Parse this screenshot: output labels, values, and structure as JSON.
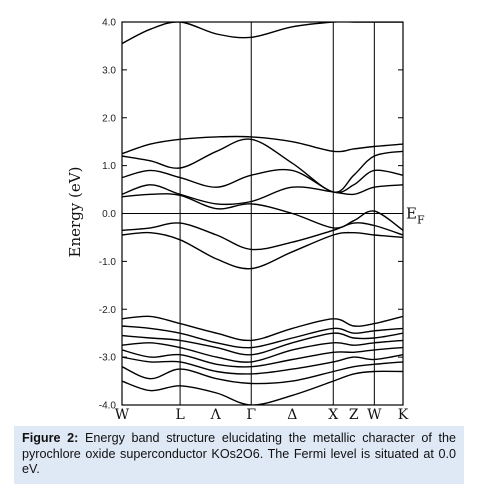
{
  "chart_data": {
    "type": "line",
    "ylabel": "Energy (eV)",
    "ylim": [
      -4.0,
      4.0
    ],
    "y_ticks": [
      "4.0",
      "3.0",
      "2.0",
      "1.0",
      "0.0",
      "-1.0",
      "-2.0",
      "-3.0",
      "-4.0"
    ],
    "k_points": [
      {
        "label": "W",
        "x": 0
      },
      {
        "label": "L",
        "x": 0.614
      },
      {
        "label": "Λ",
        "x": 0.99
      },
      {
        "label": "Γ",
        "x": 1.366
      },
      {
        "label": "Δ",
        "x": 1.8
      },
      {
        "label": "X",
        "x": 2.233
      },
      {
        "label": "Z",
        "x": 2.45
      },
      {
        "label": "W",
        "x": 2.667
      },
      {
        "label": "K",
        "x": 2.97
      }
    ],
    "vertical_lines_at": [
      0.614,
      1.366,
      2.233,
      2.667
    ],
    "fermi_level": {
      "label": "E",
      "subscript": "F",
      "value": 0.0
    },
    "series": [
      {
        "x": [
          0,
          0.3,
          0.614,
          1.0,
          1.366,
          1.8,
          2.233,
          2.45,
          2.667,
          2.97
        ],
        "y": [
          3.55,
          3.85,
          4.0,
          3.75,
          3.68,
          3.9,
          4.0,
          4.0,
          4.0,
          4.0
        ]
      },
      {
        "x": [
          0,
          0.3,
          0.614,
          1.0,
          1.366,
          1.8,
          2.233,
          2.45,
          2.667,
          2.97
        ],
        "y": [
          1.25,
          1.45,
          1.55,
          1.6,
          1.6,
          1.5,
          1.3,
          1.35,
          1.4,
          1.45
        ]
      },
      {
        "x": [
          0,
          0.3,
          0.614,
          1.0,
          1.366,
          1.8,
          2.233,
          2.45,
          2.667,
          2.97
        ],
        "y": [
          1.2,
          1.1,
          0.95,
          1.3,
          1.55,
          1.05,
          0.45,
          0.8,
          1.2,
          1.3
        ]
      },
      {
        "x": [
          0,
          0.3,
          0.614,
          1.0,
          1.366,
          1.8,
          2.233,
          2.45,
          2.667,
          2.97
        ],
        "y": [
          0.75,
          0.9,
          0.75,
          0.55,
          0.8,
          0.9,
          0.45,
          0.6,
          0.9,
          0.8
        ]
      },
      {
        "x": [
          0,
          0.3,
          0.614,
          1.0,
          1.366,
          1.8,
          2.233,
          2.45,
          2.667,
          2.97
        ],
        "y": [
          0.4,
          0.6,
          0.4,
          0.2,
          0.25,
          0.55,
          0.45,
          0.4,
          0.55,
          0.6
        ]
      },
      {
        "x": [
          0,
          0.3,
          0.614,
          1.0,
          1.366,
          1.8,
          2.233,
          2.45,
          2.667,
          2.97
        ],
        "y": [
          0.35,
          0.4,
          0.38,
          0.1,
          0.2,
          0.0,
          -0.3,
          -0.15,
          0.05,
          -0.35
        ]
      },
      {
        "x": [
          0,
          0.3,
          0.614,
          1.0,
          1.366,
          1.8,
          2.233,
          2.45,
          2.667,
          2.97
        ],
        "y": [
          -0.35,
          -0.3,
          -0.2,
          -0.45,
          -0.75,
          -0.6,
          -0.35,
          -0.2,
          -0.25,
          -0.45
        ]
      },
      {
        "x": [
          0,
          0.3,
          0.614,
          1.0,
          1.366,
          1.8,
          2.233,
          2.45,
          2.667,
          2.97
        ],
        "y": [
          -0.45,
          -0.4,
          -0.55,
          -0.95,
          -1.15,
          -0.8,
          -0.45,
          -0.4,
          -0.45,
          -0.5
        ]
      },
      {
        "x": [
          0,
          0.3,
          0.614,
          1.0,
          1.366,
          1.8,
          2.233,
          2.45,
          2.667,
          2.97
        ],
        "y": [
          -2.2,
          -2.15,
          -2.3,
          -2.5,
          -2.65,
          -2.4,
          -2.2,
          -2.35,
          -2.3,
          -2.15
        ]
      },
      {
        "x": [
          0,
          0.3,
          0.614,
          1.0,
          1.366,
          1.8,
          2.233,
          2.45,
          2.667,
          2.97
        ],
        "y": [
          -2.35,
          -2.4,
          -2.5,
          -2.7,
          -2.8,
          -2.6,
          -2.4,
          -2.5,
          -2.45,
          -2.4
        ]
      },
      {
        "x": [
          0,
          0.3,
          0.614,
          1.0,
          1.366,
          1.8,
          2.233,
          2.45,
          2.667,
          2.97
        ],
        "y": [
          -2.55,
          -2.6,
          -2.65,
          -2.8,
          -2.95,
          -2.7,
          -2.5,
          -2.6,
          -2.6,
          -2.5
        ]
      },
      {
        "x": [
          0,
          0.3,
          0.614,
          1.0,
          1.366,
          1.8,
          2.233,
          2.45,
          2.667,
          2.97
        ],
        "y": [
          -2.75,
          -2.7,
          -2.8,
          -3.0,
          -3.1,
          -2.85,
          -2.7,
          -2.75,
          -2.7,
          -2.65
        ]
      },
      {
        "x": [
          0,
          0.3,
          0.614,
          1.0,
          1.366,
          1.8,
          2.233,
          2.45,
          2.667,
          2.97
        ],
        "y": [
          -2.85,
          -3.0,
          -2.95,
          -3.15,
          -3.2,
          -3.05,
          -2.9,
          -2.9,
          -2.85,
          -2.8
        ]
      },
      {
        "x": [
          0,
          0.3,
          0.614,
          1.0,
          1.366,
          1.8,
          2.233,
          2.45,
          2.667,
          2.97
        ],
        "y": [
          -3.0,
          -3.1,
          -3.1,
          -3.3,
          -3.35,
          -3.25,
          -3.1,
          -3.0,
          -3.05,
          -2.95
        ]
      },
      {
        "x": [
          0,
          0.3,
          0.614,
          1.0,
          1.366,
          1.8,
          2.233,
          2.45,
          2.667,
          2.97
        ],
        "y": [
          -3.2,
          -3.45,
          -3.25,
          -3.45,
          -3.55,
          -3.5,
          -3.3,
          -3.2,
          -3.15,
          -3.1
        ]
      },
      {
        "x": [
          0,
          0.3,
          0.614,
          1.0,
          1.366,
          1.8,
          2.233,
          2.45,
          2.667,
          2.97
        ],
        "y": [
          -3.5,
          -3.7,
          -3.6,
          -3.75,
          -4.0,
          -3.8,
          -3.5,
          -3.35,
          -3.3,
          -3.3
        ]
      }
    ]
  },
  "caption": {
    "label": "Figure 2:",
    "text": "Energy band structure elucidating the metallic character of the pyrochlore oxide superconductor KOs2O6. The Fermi level is situated at 0.0 eV."
  },
  "colors": {
    "bands": "#000000",
    "caption_bg": "#dfe8f5"
  }
}
